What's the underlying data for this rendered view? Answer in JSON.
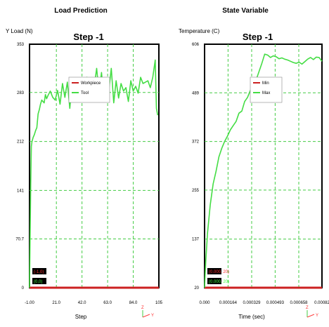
{
  "chart_data": [
    {
      "type": "line",
      "panel_title": "Load Prediction",
      "title": "Step -1",
      "ylabel": "Y Load (N)",
      "xlabel": "Step",
      "xlim": [
        -1.0,
        105
      ],
      "ylim": [
        0,
        353
      ],
      "yticks": [
        0,
        70.7,
        141,
        212,
        283,
        353
      ],
      "ytick_labels": [
        "0",
        "70.7",
        "141",
        "212",
        "283",
        "353"
      ],
      "xticks": [
        -1.0,
        21.0,
        42.0,
        63.0,
        84.0,
        105
      ],
      "xtick_labels": [
        "-1.00",
        "21.0",
        "42.0",
        "63.0",
        "84.0",
        "105"
      ],
      "legend": {
        "position": "upper-center"
      },
      "series": [
        {
          "name": "Workpiece",
          "color": "#cc2020",
          "x": [
            -1,
            105
          ],
          "y": [
            0,
            0
          ]
        },
        {
          "name": "Tool",
          "color": "#44dd44",
          "x": [
            -1,
            0,
            0.5,
            1,
            2,
            3,
            4,
            5,
            6,
            7,
            8,
            9,
            10,
            11,
            12,
            13,
            14,
            16,
            18,
            20,
            22,
            24,
            26,
            28,
            30,
            32,
            34,
            36,
            38,
            40,
            42,
            44,
            46,
            48,
            50,
            52,
            54,
            56,
            58,
            60,
            62,
            64,
            66,
            68,
            70,
            72,
            74,
            76,
            78,
            80,
            82,
            84,
            86,
            88,
            90,
            92,
            94,
            96,
            98,
            100,
            102,
            103,
            104
          ],
          "y": [
            0,
            150,
            205,
            212,
            218,
            222,
            228,
            232,
            252,
            258,
            266,
            272,
            270,
            268,
            280,
            274,
            278,
            285,
            276,
            272,
            286,
            266,
            296,
            276,
            298,
            260,
            300,
            280,
            295,
            285,
            298,
            288,
            305,
            278,
            300,
            292,
            318,
            282,
            312,
            270,
            292,
            286,
            318,
            268,
            300,
            275,
            296,
            285,
            290,
            270,
            300,
            285,
            292,
            282,
            305,
            296,
            298,
            300,
            290,
            305,
            330,
            260,
            250
          ]
        }
      ],
      "annotations": [
        "(-1,0)",
        "(0,0)"
      ]
    },
    {
      "type": "line",
      "panel_title": "State Variable",
      "title": "Step -1",
      "ylabel": "Temperature (C)",
      "xlabel": "Time (sec)",
      "xlim": [
        0,
        0.00082
      ],
      "ylim": [
        20,
        606
      ],
      "yticks": [
        20,
        137,
        255,
        372,
        489,
        606
      ],
      "ytick_labels": [
        "20",
        "137",
        "255",
        "372",
        "489",
        "606"
      ],
      "xticks": [
        0,
        0.000164,
        0.000329,
        0.000493,
        0.000658,
        0.00082
      ],
      "xtick_labels": [
        "0.000",
        "0.000164",
        "0.000329",
        "0.000493",
        "0.000658",
        "0.00082"
      ],
      "legend": {
        "position": "upper-center"
      },
      "series": [
        {
          "name": "Min",
          "color": "#cc2020",
          "x": [
            0,
            0.00082
          ],
          "y": [
            20,
            20
          ]
        },
        {
          "name": "Max",
          "color": "#44dd44",
          "x": [
            0,
            8e-06,
            2e-05,
            4e-05,
            6e-05,
            8e-05,
            0.0001,
            0.00012,
            0.00014,
            0.00016,
            0.00018,
            0.0002,
            0.00022,
            0.00024,
            0.00026,
            0.00028,
            0.0003,
            0.00032,
            0.00034,
            0.00036,
            0.00038,
            0.0004,
            0.00042,
            0.00044,
            0.00046,
            0.00048,
            0.0005,
            0.00052,
            0.00054,
            0.00056,
            0.00058,
            0.0006,
            0.00062,
            0.00064,
            0.00066,
            0.00068,
            0.0007,
            0.00072,
            0.00074,
            0.00076,
            0.00078,
            0.0008,
            0.00082
          ],
          "y": [
            20,
            80,
            150,
            220,
            270,
            300,
            335,
            355,
            372,
            385,
            400,
            410,
            420,
            440,
            445,
            468,
            478,
            495,
            505,
            520,
            540,
            560,
            582,
            580,
            574,
            578,
            576,
            571,
            573,
            570,
            568,
            565,
            562,
            560,
            563,
            558,
            564,
            570,
            574,
            569,
            575,
            574,
            565
          ]
        }
      ],
      "annotations": [
        "(0.000, 20)",
        "(0.000, 20)"
      ]
    }
  ],
  "axis_triad": {
    "x": "Y",
    "y": "Z"
  }
}
